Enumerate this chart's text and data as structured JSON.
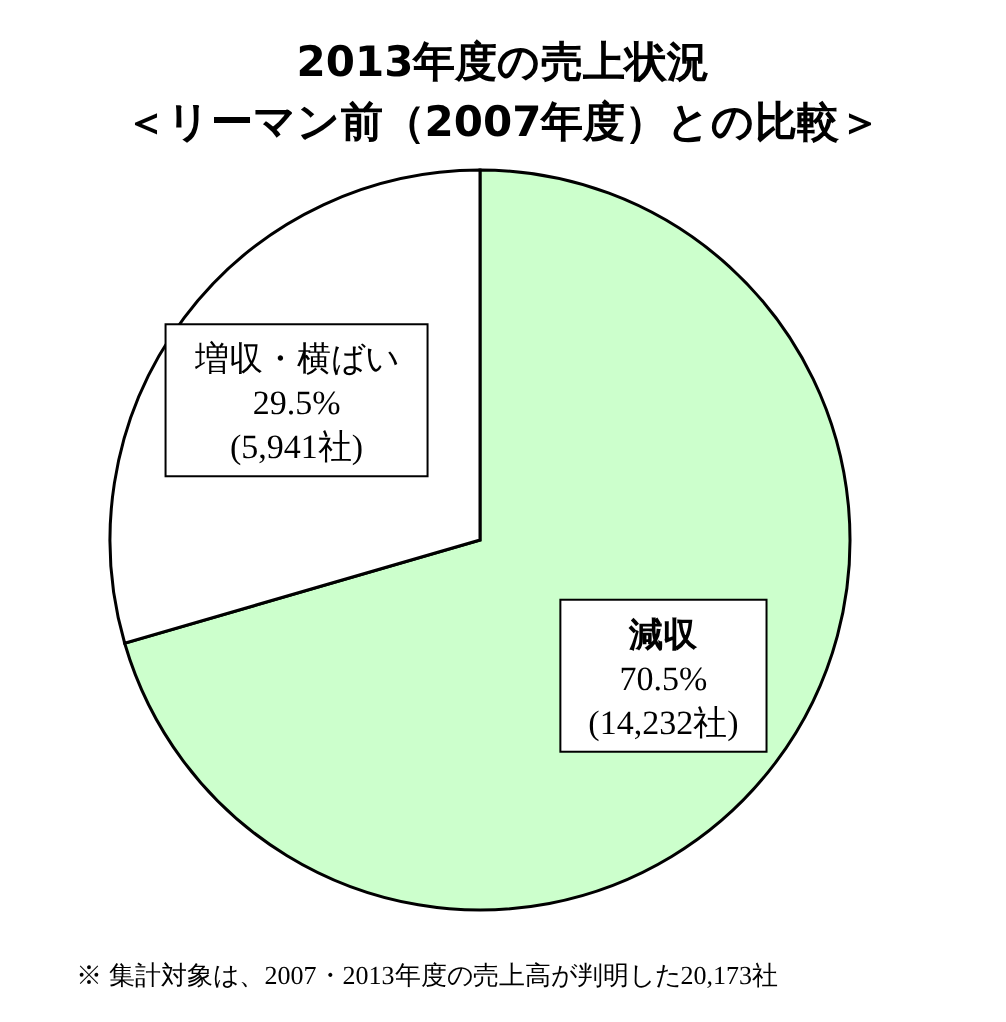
{
  "chart_data": {
    "type": "pie",
    "title": "2013年度の売上状況",
    "subtitle": "＜リーマン前（2007年度）との比較＞",
    "categories": [
      "減収",
      "増収・横ばい"
    ],
    "values": [
      70.5,
      29.5
    ],
    "colors": [
      "#ccffcc",
      "#ffffff"
    ],
    "value_labels": [
      "70.5%\n(14,232社)",
      "29.5%\n(5,941社)"
    ],
    "annotations": [
      "※ 集計対象は、2007・2013年度の売上高が判明した20,173社"
    ]
  }
}
